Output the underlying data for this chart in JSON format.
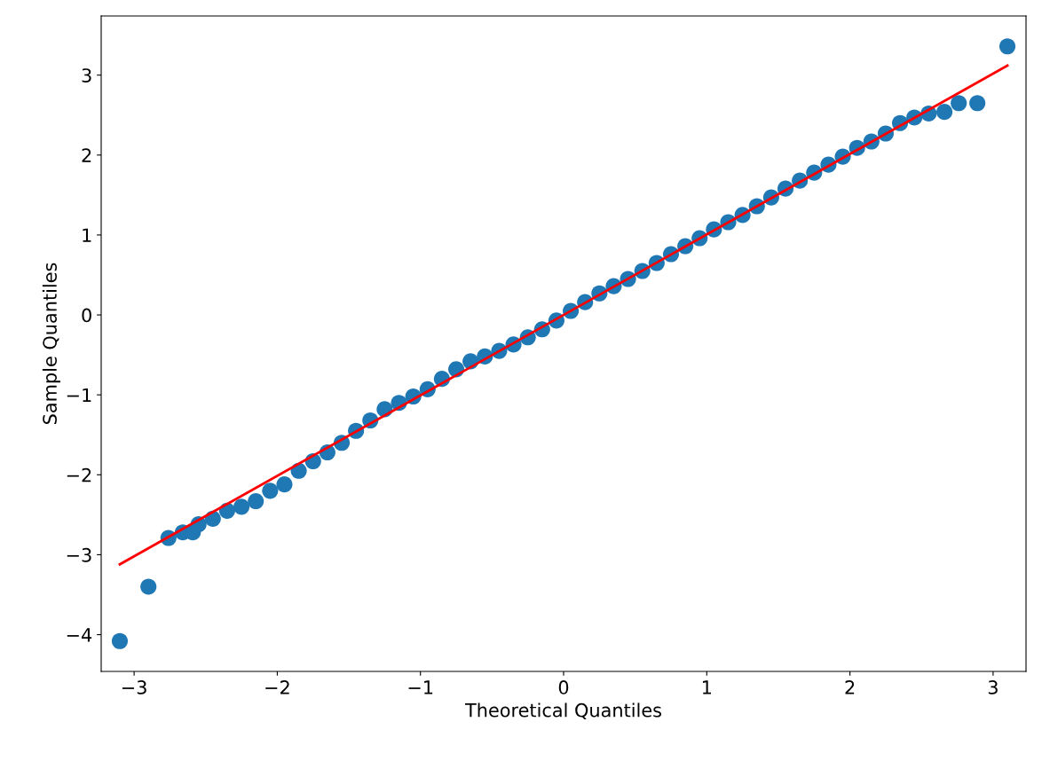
{
  "chart_data": {
    "type": "scatter",
    "xlabel": "Theoretical Quantiles",
    "ylabel": "Sample Quantiles",
    "xlim": [
      -3.23,
      3.23
    ],
    "xticks": [
      -3,
      -2,
      -1,
      0,
      1,
      2,
      3
    ],
    "ylim": [
      -4.46,
      3.74
    ],
    "yticks": [
      -4,
      -3,
      -2,
      -1,
      0,
      1,
      2,
      3
    ],
    "grid": false,
    "series": [
      {
        "color": "#1f77b4",
        "marker": "circle",
        "x": [
          -3.1,
          -2.9,
          -2.76,
          -2.66,
          -2.59,
          -2.55,
          -2.45,
          -2.35,
          -2.25,
          -2.15,
          -2.05,
          -1.95,
          -1.85,
          -1.75,
          -1.65,
          -1.55,
          -1.45,
          -1.35,
          -1.25,
          -1.15,
          -1.05,
          -0.95,
          -0.85,
          -0.75,
          -0.65,
          -0.55,
          -0.45,
          -0.35,
          -0.25,
          -0.15,
          -0.05,
          0.05,
          0.15,
          0.25,
          0.35,
          0.45,
          0.55,
          0.65,
          0.75,
          0.85,
          0.95,
          1.05,
          1.15,
          1.25,
          1.35,
          1.45,
          1.55,
          1.65,
          1.75,
          1.85,
          1.95,
          2.05,
          2.15,
          2.25,
          2.35,
          2.45,
          2.55,
          2.66,
          2.76,
          2.89,
          3.1
        ],
        "values": [
          -4.08,
          -3.4,
          -2.79,
          -2.72,
          -2.72,
          -2.62,
          -2.55,
          -2.45,
          -2.4,
          -2.33,
          -2.2,
          -2.12,
          -1.95,
          -1.83,
          -1.72,
          -1.6,
          -1.45,
          -1.32,
          -1.18,
          -1.1,
          -1.02,
          -0.93,
          -0.8,
          -0.68,
          -0.58,
          -0.52,
          -0.45,
          -0.37,
          -0.28,
          -0.18,
          -0.07,
          0.05,
          0.16,
          0.27,
          0.36,
          0.45,
          0.55,
          0.65,
          0.76,
          0.86,
          0.96,
          1.07,
          1.16,
          1.25,
          1.36,
          1.47,
          1.58,
          1.68,
          1.78,
          1.88,
          1.98,
          2.09,
          2.17,
          2.27,
          2.4,
          2.47,
          2.52,
          2.54,
          2.65,
          2.65,
          3.36
        ]
      },
      {
        "type": "line",
        "color": "#ff0000",
        "marker": "none",
        "line_style": "solid",
        "x": [
          -3.1,
          3.1
        ],
        "values": [
          -3.12,
          3.12
        ]
      }
    ]
  }
}
